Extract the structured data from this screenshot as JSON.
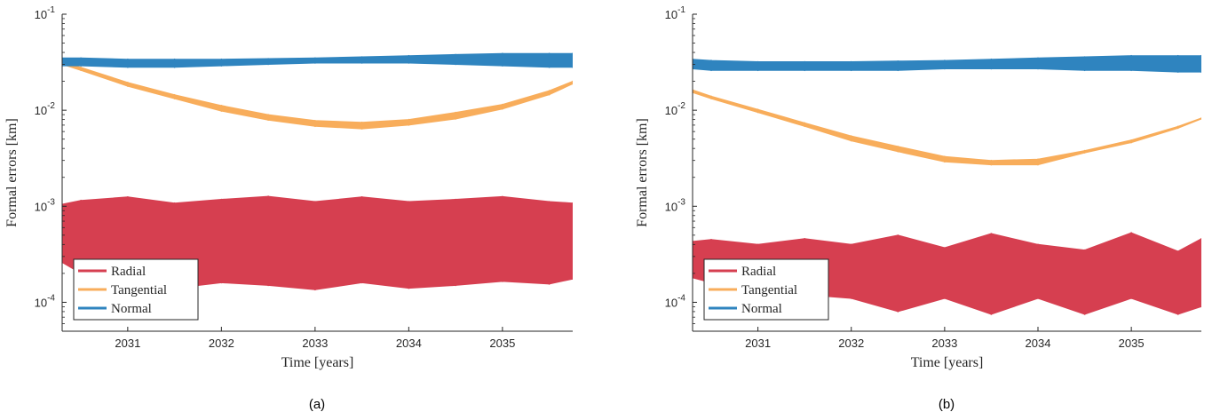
{
  "colors": {
    "radial": "#d63f50",
    "tangential": "#f8ad5b",
    "normal": "#2f84bf",
    "axis": "#262626"
  },
  "chart_data": [
    {
      "type": "line",
      "caption": "(a)",
      "xlabel": "Time [years]",
      "ylabel": "Formal errors [km]",
      "log_y": true,
      "xlim": [
        2030.3,
        2035.75
      ],
      "ylim": [
        5e-05,
        0.1
      ],
      "x_ticks": [
        "2031",
        "2032",
        "2033",
        "2034",
        "2035"
      ],
      "y_ticks": [
        {
          "base": "10",
          "exp": "-4",
          "value": 0.0001
        },
        {
          "base": "10",
          "exp": "-3",
          "value": 0.001
        },
        {
          "base": "10",
          "exp": "-2",
          "value": 0.01
        },
        {
          "base": "10",
          "exp": "-1",
          "value": 0.1
        }
      ],
      "legend": {
        "location": "lower-left",
        "entries": [
          "Radial",
          "Tangential",
          "Normal"
        ]
      },
      "x": [
        2030.3,
        2030.5,
        2031.0,
        2031.5,
        2032.0,
        2032.5,
        2033.0,
        2033.5,
        2034.0,
        2034.5,
        2035.0,
        2035.5,
        2035.75
      ],
      "series": [
        {
          "name": "Radial",
          "color_key": "radial",
          "upper": [
            0.00105,
            0.00115,
            0.00125,
            0.00108,
            0.00118,
            0.00127,
            0.00112,
            0.00125,
            0.00112,
            0.00118,
            0.00126,
            0.00112,
            0.00108
          ],
          "lower": [
            0.00026,
            0.0002,
            0.000155,
            0.00014,
            0.00016,
            0.00015,
            0.000135,
            0.00016,
            0.00014,
            0.00015,
            0.000165,
            0.000155,
            0.000175
          ]
        },
        {
          "name": "Tangential",
          "color_key": "tangential",
          "upper": [
            0.032,
            0.028,
            0.0195,
            0.0145,
            0.0112,
            0.009,
            0.0078,
            0.0075,
            0.008,
            0.0095,
            0.0115,
            0.016,
            0.02
          ],
          "lower": [
            0.03,
            0.026,
            0.0178,
            0.0132,
            0.0098,
            0.0079,
            0.0068,
            0.0064,
            0.007,
            0.0081,
            0.0103,
            0.0145,
            0.0188
          ]
        },
        {
          "name": "Normal",
          "color_key": "normal",
          "upper": [
            0.035,
            0.035,
            0.034,
            0.034,
            0.034,
            0.0345,
            0.035,
            0.036,
            0.037,
            0.038,
            0.039,
            0.039,
            0.039
          ],
          "lower": [
            0.029,
            0.029,
            0.028,
            0.028,
            0.029,
            0.03,
            0.031,
            0.031,
            0.031,
            0.03,
            0.029,
            0.028,
            0.028
          ]
        }
      ]
    },
    {
      "type": "line",
      "caption": "(b)",
      "xlabel": "Time [years]",
      "ylabel": "Formal errors [km]",
      "log_y": true,
      "xlim": [
        2030.3,
        2035.75
      ],
      "ylim": [
        5e-05,
        0.1
      ],
      "x_ticks": [
        "2031",
        "2032",
        "2033",
        "2034",
        "2035"
      ],
      "y_ticks": [
        {
          "base": "10",
          "exp": "-4",
          "value": 0.0001
        },
        {
          "base": "10",
          "exp": "-3",
          "value": 0.001
        },
        {
          "base": "10",
          "exp": "-2",
          "value": 0.01
        },
        {
          "base": "10",
          "exp": "-1",
          "value": 0.1
        }
      ],
      "legend": {
        "location": "lower-left",
        "entries": [
          "Radial",
          "Tangential",
          "Normal"
        ]
      },
      "x": [
        2030.3,
        2030.5,
        2031.0,
        2031.5,
        2032.0,
        2032.5,
        2033.0,
        2033.5,
        2034.0,
        2034.5,
        2035.0,
        2035.5,
        2035.75
      ],
      "series": [
        {
          "name": "Radial",
          "color_key": "radial",
          "upper": [
            0.00043,
            0.00045,
            0.0004,
            0.00046,
            0.0004,
            0.0005,
            0.00037,
            0.00052,
            0.0004,
            0.00035,
            0.00053,
            0.00034,
            0.00046
          ],
          "lower": [
            0.00018,
            0.00016,
            0.00014,
            0.00012,
            0.00011,
            8e-05,
            0.00011,
            7.5e-05,
            0.00011,
            7.5e-05,
            0.00011,
            7.5e-05,
            9e-05
          ]
        },
        {
          "name": "Tangential",
          "color_key": "tangential",
          "upper": [
            0.0163,
            0.014,
            0.0102,
            0.0074,
            0.0054,
            0.0042,
            0.0033,
            0.003,
            0.0031,
            0.0038,
            0.0049,
            0.0068,
            0.0083
          ],
          "lower": [
            0.0153,
            0.0132,
            0.0095,
            0.0068,
            0.0048,
            0.0037,
            0.0029,
            0.0027,
            0.0027,
            0.0036,
            0.0046,
            0.0065,
            0.0081
          ]
        },
        {
          "name": "Normal",
          "color_key": "normal",
          "upper": [
            0.034,
            0.033,
            0.032,
            0.032,
            0.032,
            0.0325,
            0.033,
            0.034,
            0.035,
            0.036,
            0.037,
            0.037,
            0.037
          ],
          "lower": [
            0.027,
            0.026,
            0.026,
            0.026,
            0.026,
            0.026,
            0.027,
            0.027,
            0.027,
            0.026,
            0.026,
            0.025,
            0.025
          ]
        }
      ]
    }
  ]
}
